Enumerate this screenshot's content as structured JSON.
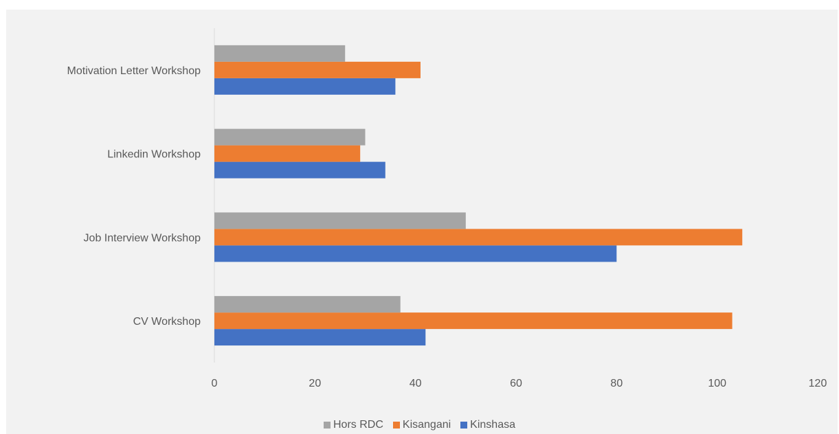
{
  "chart_data": {
    "type": "bar",
    "orientation": "horizontal",
    "title": "",
    "xlabel": "",
    "ylabel": "",
    "categories": [
      "CV Workshop",
      "Job Interview Workshop",
      "Linkedin Workshop",
      "Motivation Letter Workshop"
    ],
    "series": [
      {
        "name": "Kinshasa",
        "color": "#4472c4",
        "values": [
          42,
          80,
          34,
          36
        ]
      },
      {
        "name": "Kisangani",
        "color": "#ed7d31",
        "values": [
          103,
          105,
          29,
          41
        ]
      },
      {
        "name": "Hors RDC",
        "color": "#a5a5a5",
        "values": [
          37,
          50,
          30,
          26
        ]
      }
    ],
    "xlim": [
      0,
      120
    ],
    "xticks": [
      "0",
      "20",
      "40",
      "60",
      "80",
      "100",
      "120"
    ],
    "grid": false,
    "legend_position": "bottom",
    "legend_order": [
      "Hors RDC",
      "Kisangani",
      "Kinshasa"
    ]
  }
}
